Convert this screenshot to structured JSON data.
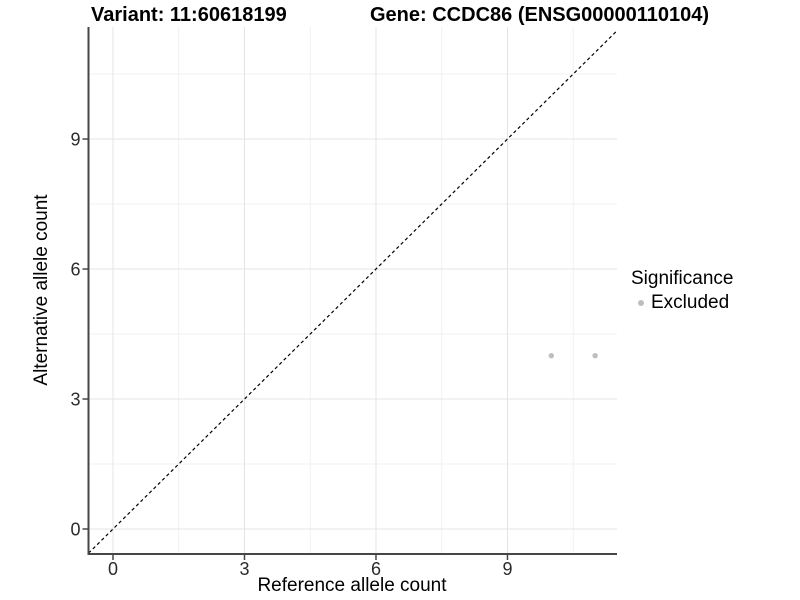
{
  "chart_data": {
    "type": "scatter",
    "title_left": "Variant: 11:60618199",
    "title_right": "Gene: CCDC86 (ENSG00000110104)",
    "xlabel": "Reference allele count",
    "ylabel": "Alternative allele count",
    "xlim": [
      -0.57,
      11.5
    ],
    "ylim": [
      -0.58,
      11.6
    ],
    "x_major_ticks": [
      0,
      3,
      6,
      9
    ],
    "y_major_ticks": [
      0,
      3,
      6,
      9
    ],
    "x_minor_ticks": [
      1.5,
      4.5,
      7.5,
      10.5
    ],
    "y_minor_ticks": [
      1.5,
      4.5,
      7.5,
      10.5
    ],
    "grid": "major+minor",
    "reference_line": {
      "kind": "identity y=x",
      "style": "dashed",
      "color": "#000000"
    },
    "legend": {
      "title": "Significance",
      "position": "right",
      "items": [
        {
          "label": "Excluded",
          "color": "#bebebe"
        }
      ]
    },
    "series": [
      {
        "name": "Excluded",
        "color": "#bebebe",
        "points": [
          [
            10,
            4
          ],
          [
            11,
            4
          ]
        ]
      }
    ],
    "colors": {
      "point_excluded": "#bebebe",
      "axis_line": "#464646",
      "major_grid": "#e4e4e4",
      "minor_grid": "#f1f1f1",
      "tick_label": "#2b2b2b"
    }
  }
}
